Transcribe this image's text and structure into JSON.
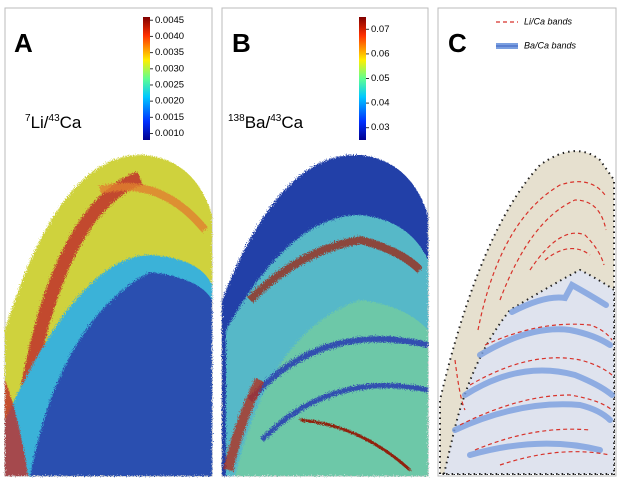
{
  "panels": [
    {
      "label": "A",
      "ratio": {
        "iso_num": "7",
        "num": "Li/",
        "iso_den": "43",
        "den": "Ca"
      },
      "colorbar": {
        "clim": [
          0.0008,
          0.0046
        ],
        "ticks": [
          0.0045,
          {
            "value": 0.004,
            "label": "0.0040"
          },
          0.0035,
          {
            "value": 0.003,
            "label": "0.0030"
          },
          0.0025,
          {
            "value": 0.002,
            "label": "0.0020"
          },
          0.0015,
          {
            "value": 0.001,
            "label": "0.0010"
          }
        ]
      }
    },
    {
      "label": "B",
      "ratio": {
        "iso_num": "138",
        "num": "Ba/",
        "iso_den": "43",
        "den": "Ca"
      },
      "colorbar": {
        "clim": [
          0.025,
          0.075
        ],
        "ticks": [
          0.07,
          0.06,
          0.05,
          0.04,
          0.03
        ]
      }
    },
    {
      "label": "C",
      "legend": [
        "Li/Ca bands",
        "Ba/Ca bands"
      ]
    }
  ]
}
